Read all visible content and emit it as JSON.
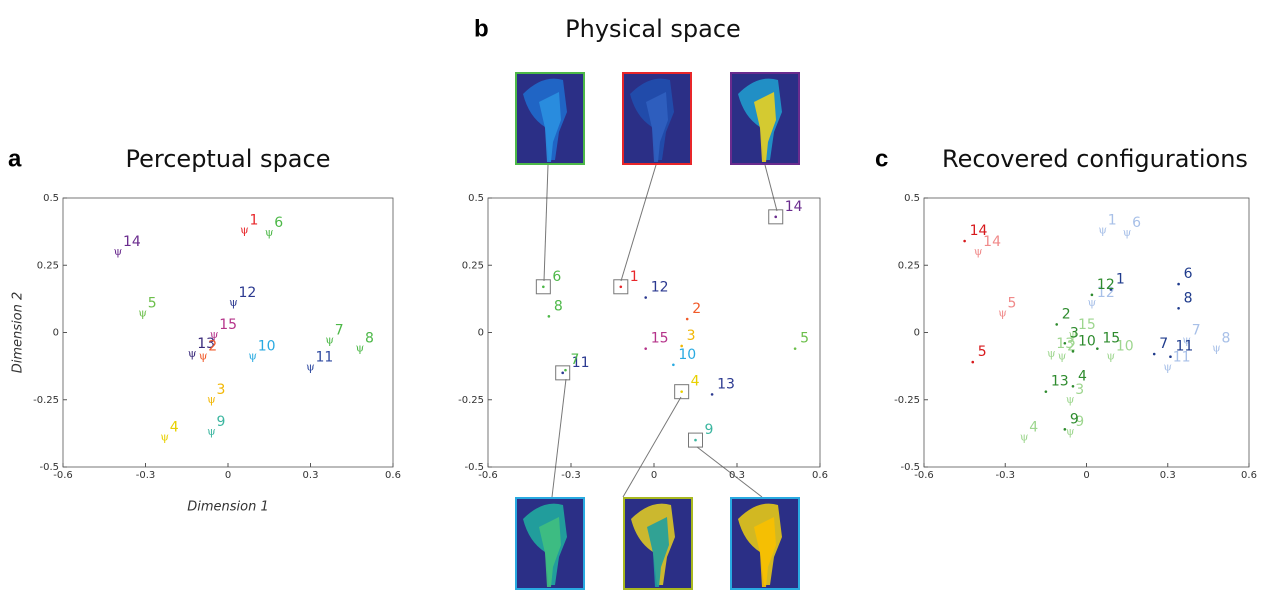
{
  "chart_data": [
    {
      "type": "scatter",
      "panel": "a",
      "title": "Perceptual space",
      "x_label": "Dimension 1",
      "y_label": "Dimension 2",
      "xlim": [
        -0.6,
        0.6
      ],
      "ylim": [
        -0.5,
        0.5
      ],
      "xticks": [
        -0.6,
        -0.3,
        0,
        0.3,
        0.6
      ],
      "yticks": [
        -0.5,
        -0.25,
        0,
        0.25,
        0.5
      ],
      "psi_symbol": "ψ",
      "points": [
        {
          "label": "1",
          "x": 0.06,
          "y": 0.38,
          "color": "#e8262a",
          "marker": "psi"
        },
        {
          "label": "6",
          "x": 0.15,
          "y": 0.37,
          "color": "#4db848",
          "marker": "psi"
        },
        {
          "label": "14",
          "x": -0.4,
          "y": 0.3,
          "color": "#6a2c8e",
          "marker": "psi"
        },
        {
          "label": "5",
          "x": -0.31,
          "y": 0.07,
          "color": "#6cbf4b",
          "marker": "psi"
        },
        {
          "label": "12",
          "x": 0.02,
          "y": 0.11,
          "color": "#2b3990",
          "marker": "psi"
        },
        {
          "label": "15",
          "x": -0.05,
          "y": -0.01,
          "color": "#b5338a",
          "marker": "psi"
        },
        {
          "label": "13",
          "x": -0.13,
          "y": -0.08,
          "color": "#3a2a7a",
          "marker": "psi"
        },
        {
          "label": "2",
          "x": -0.09,
          "y": -0.09,
          "color": "#f15a29",
          "marker": "psi"
        },
        {
          "label": "7",
          "x": 0.37,
          "y": -0.03,
          "color": "#4db848",
          "marker": "psi"
        },
        {
          "label": "8",
          "x": 0.48,
          "y": -0.06,
          "color": "#4db848",
          "marker": "psi"
        },
        {
          "label": "10",
          "x": 0.09,
          "y": -0.09,
          "color": "#29aae1",
          "marker": "psi"
        },
        {
          "label": "11",
          "x": 0.3,
          "y": -0.13,
          "color": "#2e49a0",
          "marker": "psi"
        },
        {
          "label": "3",
          "x": -0.06,
          "y": -0.25,
          "color": "#f2b705",
          "marker": "psi"
        },
        {
          "label": "4",
          "x": -0.23,
          "y": -0.39,
          "color": "#e8d000",
          "marker": "psi"
        },
        {
          "label": "9",
          "x": -0.06,
          "y": -0.37,
          "color": "#3cb6a0",
          "marker": "psi"
        }
      ]
    },
    {
      "type": "scatter",
      "panel": "b",
      "title": "Physical space",
      "xlim": [
        -0.6,
        0.6
      ],
      "ylim": [
        -0.5,
        0.5
      ],
      "xticks": [
        -0.6,
        -0.3,
        0,
        0.3,
        0.6
      ],
      "yticks": [
        -0.5,
        -0.25,
        0,
        0.25,
        0.5
      ],
      "points": [
        {
          "label": "1",
          "x": -0.12,
          "y": 0.17,
          "color": "#e8262a",
          "marker": "dot",
          "boxed": true
        },
        {
          "label": "6",
          "x": -0.4,
          "y": 0.17,
          "color": "#4db848",
          "marker": "dot",
          "boxed": true
        },
        {
          "label": "12",
          "x": -0.03,
          "y": 0.13,
          "color": "#2b3990",
          "marker": "dot"
        },
        {
          "label": "8",
          "x": -0.38,
          "y": 0.06,
          "color": "#4db848",
          "marker": "dot"
        },
        {
          "label": "14",
          "x": 0.44,
          "y": 0.43,
          "color": "#6a2c8e",
          "marker": "dot",
          "boxed": true
        },
        {
          "label": "2",
          "x": 0.12,
          "y": 0.05,
          "color": "#f15a29",
          "marker": "dot"
        },
        {
          "label": "3",
          "x": 0.1,
          "y": -0.05,
          "color": "#f2b705",
          "marker": "dot"
        },
        {
          "label": "15",
          "x": -0.03,
          "y": -0.06,
          "color": "#b5338a",
          "marker": "dot"
        },
        {
          "label": "10",
          "x": 0.07,
          "y": -0.12,
          "color": "#29aae1",
          "marker": "dot"
        },
        {
          "label": "5",
          "x": 0.51,
          "y": -0.06,
          "color": "#6cbf4b",
          "marker": "dot"
        },
        {
          "label": "11",
          "x": -0.33,
          "y": -0.15,
          "color": "#2b3990",
          "marker": "dot",
          "boxed": true
        },
        {
          "label": "7",
          "x": -0.32,
          "y": -0.14,
          "color": "#4db848",
          "marker": "dot"
        },
        {
          "label": "4",
          "x": 0.1,
          "y": -0.22,
          "color": "#e8d000",
          "marker": "dot",
          "boxed": true
        },
        {
          "label": "13",
          "x": 0.21,
          "y": -0.23,
          "color": "#2b3990",
          "marker": "dot"
        },
        {
          "label": "9",
          "x": 0.15,
          "y": -0.4,
          "color": "#3cb6a0",
          "marker": "dot",
          "boxed": true
        }
      ]
    },
    {
      "type": "scatter",
      "panel": "c",
      "title": "Recovered configurations",
      "xlim": [
        -0.6,
        0.6
      ],
      "ylim": [
        -0.5,
        0.5
      ],
      "xticks": [
        -0.6,
        -0.3,
        0,
        0.3,
        0.6
      ],
      "yticks": [
        -0.5,
        -0.25,
        0,
        0.25,
        0.5
      ],
      "psi_symbol": "ψ",
      "points": [
        {
          "label": "1",
          "x": 0.06,
          "y": 0.38,
          "color": "#a8c0e8",
          "marker": "psi"
        },
        {
          "label": "6",
          "x": 0.15,
          "y": 0.37,
          "color": "#a8c0e8",
          "marker": "psi"
        },
        {
          "label": "14",
          "x": -0.4,
          "y": 0.3,
          "color": "#f08a8a",
          "marker": "psi"
        },
        {
          "label": "5",
          "x": -0.31,
          "y": 0.07,
          "color": "#f08a8a",
          "marker": "psi"
        },
        {
          "label": "12",
          "x": 0.02,
          "y": 0.11,
          "color": "#a8c0e8",
          "marker": "psi"
        },
        {
          "label": "15",
          "x": -0.05,
          "y": -0.01,
          "color": "#9ed68f",
          "marker": "psi"
        },
        {
          "label": "13",
          "x": -0.13,
          "y": -0.08,
          "color": "#9ed68f",
          "marker": "psi"
        },
        {
          "label": "2",
          "x": -0.09,
          "y": -0.09,
          "color": "#9ed68f",
          "marker": "psi"
        },
        {
          "label": "7",
          "x": 0.37,
          "y": -0.03,
          "color": "#a8c0e8",
          "marker": "psi"
        },
        {
          "label": "8",
          "x": 0.48,
          "y": -0.06,
          "color": "#a8c0e8",
          "marker": "psi"
        },
        {
          "label": "10",
          "x": 0.09,
          "y": -0.09,
          "color": "#9ed68f",
          "marker": "psi"
        },
        {
          "label": "11",
          "x": 0.3,
          "y": -0.13,
          "color": "#a8c0e8",
          "marker": "psi"
        },
        {
          "label": "3",
          "x": -0.06,
          "y": -0.25,
          "color": "#9ed68f",
          "marker": "psi"
        },
        {
          "label": "4",
          "x": -0.23,
          "y": -0.39,
          "color": "#9ed68f",
          "marker": "psi"
        },
        {
          "label": "9",
          "x": -0.06,
          "y": -0.37,
          "color": "#9ed68f",
          "marker": "psi"
        },
        {
          "label": "14",
          "x": -0.45,
          "y": 0.34,
          "color": "#d7191c",
          "marker": "dot"
        },
        {
          "label": "5",
          "x": -0.42,
          "y": -0.11,
          "color": "#d7191c",
          "marker": "dot"
        },
        {
          "label": "1",
          "x": 0.09,
          "y": 0.16,
          "color": "#1f3b8c",
          "marker": "dot"
        },
        {
          "label": "6",
          "x": 0.34,
          "y": 0.18,
          "color": "#1f3b8c",
          "marker": "dot"
        },
        {
          "label": "8",
          "x": 0.34,
          "y": 0.09,
          "color": "#1f3b8c",
          "marker": "dot"
        },
        {
          "label": "12",
          "x": 0.02,
          "y": 0.14,
          "color": "#2e8b2e",
          "marker": "dot"
        },
        {
          "label": "2",
          "x": -0.11,
          "y": 0.03,
          "color": "#2e8b2e",
          "marker": "dot"
        },
        {
          "label": "3",
          "x": -0.08,
          "y": -0.04,
          "color": "#2e8b2e",
          "marker": "dot"
        },
        {
          "label": "15",
          "x": 0.04,
          "y": -0.06,
          "color": "#2e8b2e",
          "marker": "dot"
        },
        {
          "label": "10",
          "x": -0.05,
          "y": -0.07,
          "color": "#2e8b2e",
          "marker": "dot"
        },
        {
          "label": "7",
          "x": 0.25,
          "y": -0.08,
          "color": "#1f3b8c",
          "marker": "dot"
        },
        {
          "label": "11",
          "x": 0.31,
          "y": -0.09,
          "color": "#1f3b8c",
          "marker": "dot"
        },
        {
          "label": "13",
          "x": -0.15,
          "y": -0.22,
          "color": "#2e8b2e",
          "marker": "dot"
        },
        {
          "label": "4",
          "x": -0.05,
          "y": -0.2,
          "color": "#2e8b2e",
          "marker": "dot"
        },
        {
          "label": "9",
          "x": -0.08,
          "y": -0.36,
          "color": "#2e8b2e",
          "marker": "dot"
        }
      ]
    }
  ]
}
